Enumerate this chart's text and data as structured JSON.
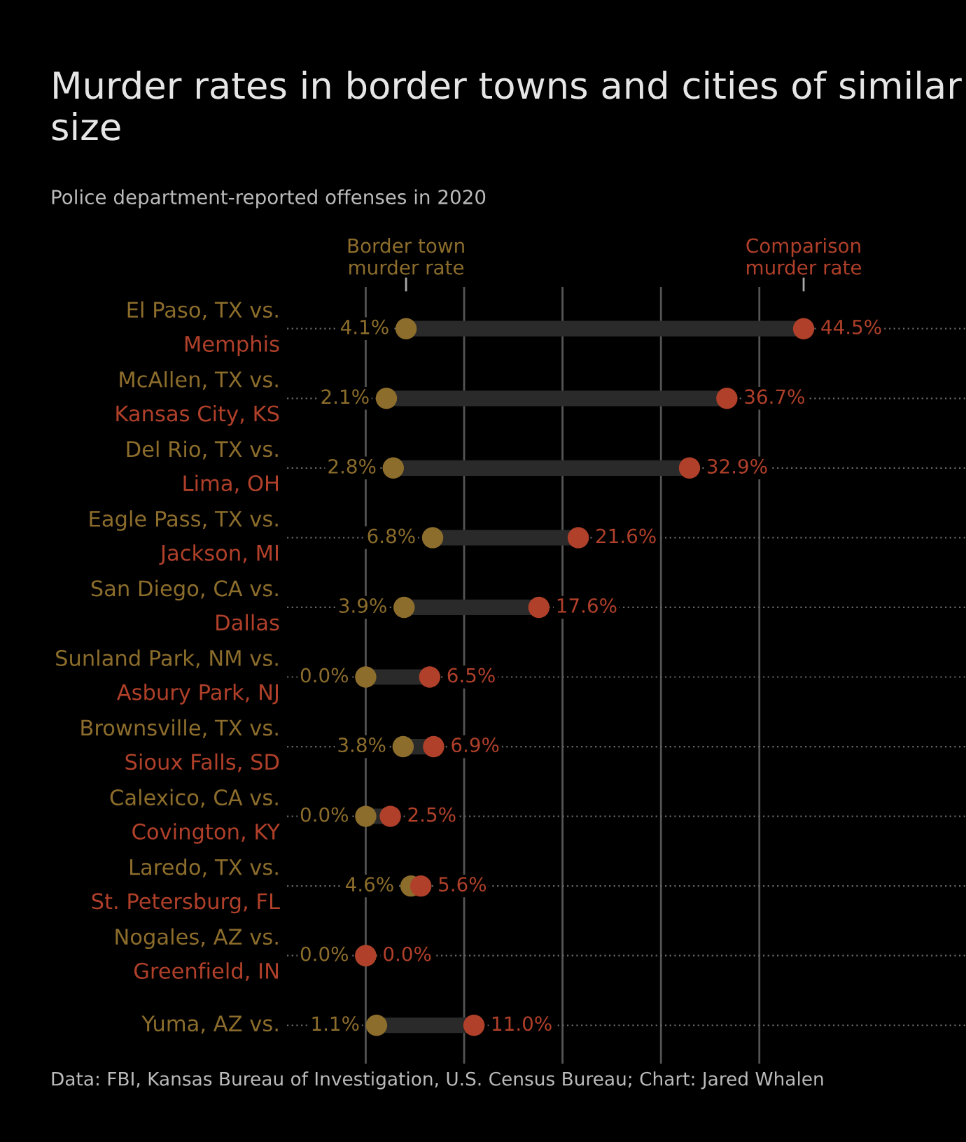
{
  "chart_data": {
    "type": "scatter",
    "orientation": "horizontal",
    "title": "Murder rates in border towns and cities of similar size",
    "subtitle": "Police department-reported offenses in 2020",
    "categories": [
      "El Paso, TX vs.\nMemphis",
      "McAllen, TX vs.\nKansas City, KS",
      "Del Rio, TX vs.\nLima, OH",
      "Eagle Pass, TX vs.\nJackson, MI",
      "San Diego, CA vs.\nDallas",
      "Sunland Park, NM vs.\nAsbury Park, NJ",
      "Brownsville, TX vs.\nSioux Falls, SD",
      "Calexico, CA vs.\nCovington, KY",
      "Laredo, TX vs.\nSt. Petersburg, FL",
      "Nogales, AZ vs.\nGreenfield, IN",
      "Yuma, AZ vs."
    ],
    "series": [
      {
        "name": "Border town\nmurder rate",
        "color": "#8c6d2c",
        "values": [
          4.1,
          2.1,
          2.8,
          6.8,
          3.9,
          0.0,
          3.8,
          0.0,
          4.6,
          0.0,
          1.1
        ],
        "value_labels": [
          "4.1%",
          "2.1%",
          "2.8%",
          "6.8%",
          "3.9%",
          "0.0%",
          "3.8%",
          "0.0%",
          "4.6%",
          "0.0%",
          "1.1%"
        ]
      },
      {
        "name": "Comparison\nmurder rate",
        "color": "#b0402a",
        "values": [
          44.5,
          36.7,
          32.9,
          21.6,
          17.6,
          6.5,
          6.9,
          2.5,
          5.6,
          0.0,
          11.0
        ],
        "value_labels": [
          "44.5%",
          "36.7%",
          "32.9%",
          "21.6%",
          "17.6%",
          "6.5%",
          "6.9%",
          "2.5%",
          "5.6%",
          "0.0%",
          "11.0%"
        ]
      }
    ],
    "xlim": [
      -8,
      61
    ],
    "xticks": [
      {
        "value": 0,
        "label": null
      },
      {
        "value": 10,
        "label": null
      },
      {
        "value": 20,
        "label": null
      },
      {
        "value": 30,
        "label": null
      },
      {
        "value": 40,
        "label": null
      }
    ],
    "grid": true,
    "marker": "circle",
    "annotations": [
      "Data: FBI, Kansas Bureau of Investigation, U.S. Census Bureau; Chart: Jared Whalen"
    ]
  }
}
